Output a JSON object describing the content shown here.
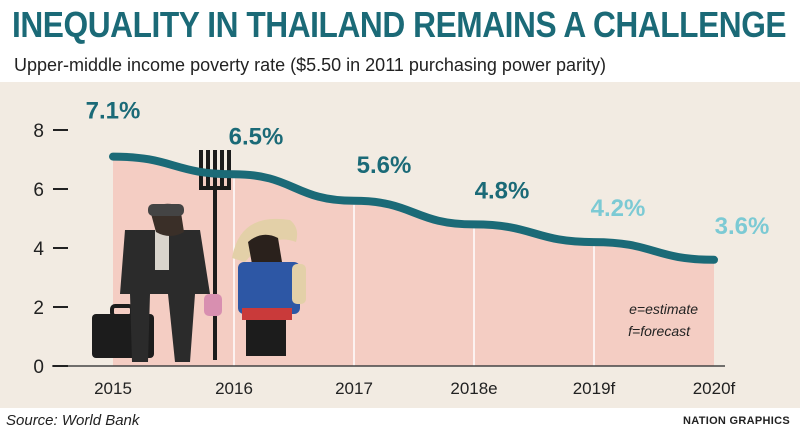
{
  "header": {
    "title": "INEQUALITY IN THAILAND REMAINS A CHALLENGE",
    "subtitle": "Upper-middle income poverty rate ($5.50 in 2011 purchasing power parity)"
  },
  "footer": {
    "source": "Source: World Bank",
    "credit": "NATION GRAPHICS"
  },
  "legend": {
    "estimate": "e=estimate",
    "forecast": "f=forecast"
  },
  "colors": {
    "title": "#1b6a77",
    "line": "#1b6a77",
    "forecast_label": "#7ccad4",
    "area_fill": "#f4cdc3",
    "panel": "#f2ebe2"
  },
  "illustration": "father-and-farmer-with-pitchfork",
  "chart_data": {
    "type": "line",
    "title": "INEQUALITY IN THAILAND REMAINS A CHALLENGE",
    "subtitle": "Upper-middle income poverty rate ($5.50 in 2011 purchasing power parity)",
    "categories": [
      "2015",
      "2016",
      "2017",
      "2018e",
      "2019f",
      "2020f"
    ],
    "values": [
      7.1,
      6.5,
      5.6,
      4.8,
      4.2,
      3.6
    ],
    "data_labels": [
      "7.1%",
      "6.5%",
      "5.6%",
      "4.8%",
      "4.2%",
      "3.6%"
    ],
    "forecast_flags": [
      false,
      false,
      false,
      false,
      true,
      true
    ],
    "yticks": [
      0,
      2,
      4,
      6,
      8
    ],
    "ylim": [
      0,
      8.8
    ],
    "xlabel": "",
    "ylabel": "",
    "grid": false,
    "fill_under_line": true
  }
}
